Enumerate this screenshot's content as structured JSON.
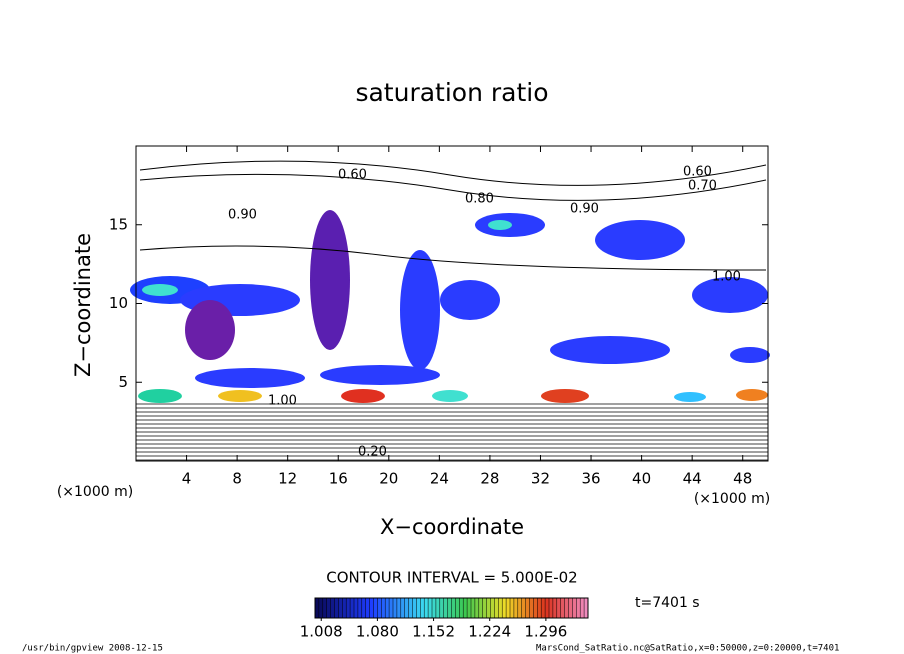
{
  "chart_data": {
    "type": "contour",
    "title": "saturation ratio",
    "x_label": "X−coordinate",
    "y_label": "Z−coordinate",
    "x_unit": "(×1000 m)",
    "y_unit": "(×1000 m)",
    "xlim": [
      0,
      50
    ],
    "ylim": [
      0,
      20
    ],
    "xticks": [
      4,
      8,
      12,
      16,
      20,
      24,
      28,
      32,
      36,
      40,
      44,
      48
    ],
    "yticks": [
      5,
      10,
      15
    ],
    "contour_interval_text": "CONTOUR INTERVAL = 5.000E-02",
    "time_text": "t=7401 s",
    "contour_labels": [
      {
        "value": 0.6,
        "label": "0.60"
      },
      {
        "value": 0.6,
        "label": "0.60"
      },
      {
        "value": 0.7,
        "label": "0.70"
      },
      {
        "value": 0.8,
        "label": "0.80"
      },
      {
        "value": 0.9,
        "label": "0.90"
      },
      {
        "value": 0.9,
        "label": "0.90"
      },
      {
        "value": 1.0,
        "label": "1.00"
      },
      {
        "value": 1.0,
        "label": "1.00"
      },
      {
        "value": 0.2,
        "label": "0.20"
      }
    ],
    "colorbar": {
      "clim": [
        1.0,
        1.35
      ],
      "ticks": [
        1.008,
        {
          "value": 1.08,
          "label": "1.080"
        },
        1.152,
        1.224,
        1.296
      ]
    },
    "footer_left": "/usr/bin/gpview  2008-12-15",
    "footer_right": "MarsCond_SatRatio.nc@SatRatio,x=0:50000,z=0:20000,t=7401"
  }
}
